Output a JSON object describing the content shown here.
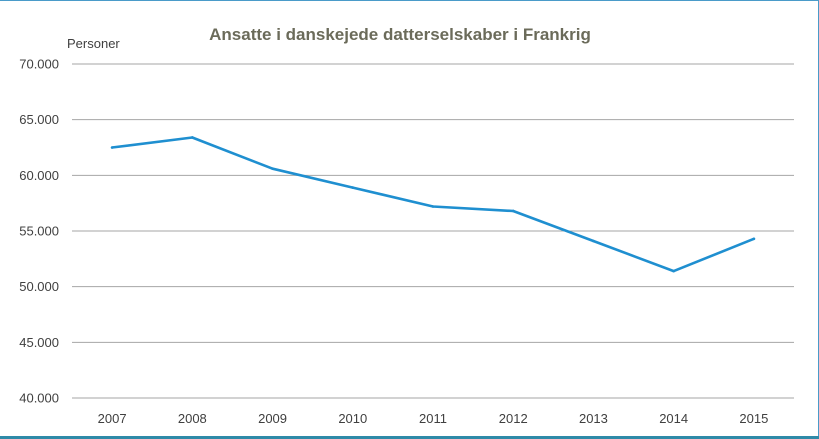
{
  "chart_data": {
    "type": "line",
    "title": "Ansatte i danskejede datterselskaber i Frankrig",
    "ylabel": "Personer",
    "xlabel": "",
    "x": [
      "2007",
      "2008",
      "2009",
      "2010",
      "2011",
      "2012",
      "2013",
      "2014",
      "2015"
    ],
    "series": [
      {
        "values": [
          62500,
          63400,
          60600,
          58900,
          57200,
          56800,
          54100,
          51400,
          54300
        ]
      }
    ],
    "ylim": [
      40000,
      70000
    ],
    "yticks": [
      40000,
      45000,
      50000,
      55000,
      60000,
      65000,
      70000
    ],
    "ytick_labels": [
      "40.000",
      "45.000",
      "50.000",
      "55.000",
      "60.000",
      "65.000",
      "70.000"
    ],
    "grid": "horizontal",
    "legend": "none",
    "colors": {
      "line": "#1f8fd0",
      "grid": "#a6a6a6",
      "frame": "#4a9bc9",
      "title": "#6b6b5a"
    }
  }
}
